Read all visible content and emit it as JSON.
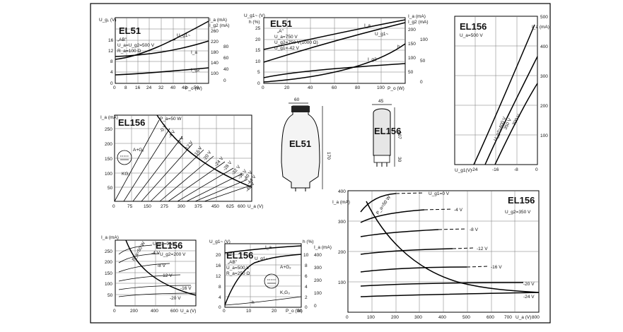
{
  "border_color": "#000000",
  "panel_a": {
    "title": "EL51",
    "y_label": "U_g₁ (V)",
    "ia_label": "I_a (mA)",
    "ig2_label": "I_g2 (mA)",
    "conditions": [
      "„AB\"",
      "U_a=U_g2=500 V",
      "R_a=100 Ω"
    ],
    "x_label": "P_o (W)",
    "x_ticks": [
      "0",
      "8",
      "16",
      "24",
      "32",
      "40",
      "48",
      "56"
    ],
    "y_ticks": [
      "0",
      "4",
      "8",
      "12",
      "16"
    ],
    "ia_ticks": [
      "260",
      "220",
      "180",
      "140",
      "100",
      "60",
      "40"
    ],
    "ig2_ticks": [
      "80",
      "60",
      "40",
      "20",
      "0"
    ],
    "curve_labels": [
      "U_g1~",
      "I_a",
      "I_g2"
    ]
  },
  "panel_b": {
    "title": "EL51",
    "y_label": "U_g1~ (V)",
    "y_label2": "h (%)",
    "ia_label": "I_a (mA)",
    "ig2_label": "I_g2 (mA)",
    "conditions": [
      "„A\"",
      "U_a=750 V",
      "U_g2=750 V(1000 Ω)",
      "U_g1=-42 V"
    ],
    "x_label": "P_o (W)",
    "x_ticks": [
      "0",
      "20",
      "40",
      "60",
      "80",
      "100",
      "120"
    ],
    "y_ticks": [
      "0",
      "5",
      "10",
      "15",
      "20",
      "25",
      "30"
    ],
    "ia_ticks": [
      "200",
      "150",
      "100",
      "50",
      "0"
    ],
    "ig2_ticks": [
      "100",
      "50",
      "0"
    ],
    "curve_labels": [
      "I_a",
      "U_g1~",
      "I_g2",
      "h"
    ]
  },
  "panel_c": {
    "title": "EL156",
    "condition": "U_a=500 V",
    "y_label": "I_a (mA)",
    "x_label": "U_g1(V)",
    "x_ticks": [
      "-24",
      "-16",
      "-8",
      "0"
    ],
    "y_ticks": [
      "500",
      "400",
      "300",
      "200",
      "100"
    ],
    "curve_labels": [
      "U_g2=400 V",
      "350 V",
      "300 V"
    ]
  },
  "panel_d": {
    "title": "EL156",
    "y_label": "I_a (mA)",
    "x_label": "U_a (V)",
    "pmax": "P_a=50 W",
    "x_ticks": [
      "0",
      "75",
      "150",
      "275",
      "300",
      "375",
      "450",
      "625",
      "600"
    ],
    "y_ticks": [
      "250",
      "200",
      "150",
      "100",
      "50"
    ],
    "curve_labels": [
      "-0 V",
      "-4 V",
      "-8 V",
      "-12 V",
      "-16 V",
      "-20 V",
      "-24 V",
      "-28 V",
      "-32 V",
      "-36 V",
      "-40 V",
      "-44 V",
      "-48 V"
    ],
    "socket_labels": [
      "A+G₂",
      "KG₃"
    ]
  },
  "panel_e": {
    "title": "EL51",
    "dim_top": "60",
    "dim_side": "170"
  },
  "panel_f": {
    "title": "EL156",
    "dim_top": "45",
    "dim_side": "107",
    "dim_base": "30"
  },
  "panel_g": {
    "title": "EL156",
    "condition": "U_g2=350 V",
    "y_label": "I_a (mA)",
    "x_label": "U_a (V)",
    "pmax": "P_a=50 W",
    "x_ticks": [
      "0",
      "100",
      "200",
      "300",
      "400",
      "500",
      "600",
      "700",
      "800"
    ],
    "y_ticks": [
      "400",
      "300",
      "200",
      "100"
    ],
    "curve_labels": [
      "U_g1=0 V",
      "-4 V",
      "-8 V",
      "-12 V",
      "-16 V",
      "-20 V",
      "-24 V"
    ]
  },
  "panel_h": {
    "title": "EL156",
    "condition": "U_g2=200 V",
    "y_label": "I_a (mA)",
    "x_label": "U_a (V)",
    "x_ticks": [
      "0",
      "200",
      "400",
      "600"
    ],
    "y_ticks": [
      "250",
      "200",
      "150",
      "100",
      "50"
    ],
    "curve_labels": [
      "U_g1=0 V",
      "-4 V",
      "-8 V",
      "-12 V",
      "-16 V",
      "-20 V",
      "P_a=50 W"
    ]
  },
  "panel_i": {
    "title": "EL156",
    "y_label": "U_g1~ (V)",
    "h_label": "h (%)",
    "ia_label": "I_a (mA)",
    "conditions": [
      "„AB\"",
      "U_a=500 V",
      "R_a=250 Ω"
    ],
    "x_label": "P_o (W)",
    "x_ticks": [
      "0",
      "10",
      "20",
      "30"
    ],
    "y_ticks": [
      "20",
      "16",
      "12",
      "8",
      "4",
      "0"
    ],
    "h_ticks": [
      "10",
      "8",
      "6",
      "4",
      "2",
      "0"
    ],
    "ia_ticks": [
      "400",
      "300",
      "200",
      "100",
      "0"
    ],
    "curve_labels": [
      "I_a",
      "U_g1~",
      "h"
    ],
    "socket_labels": [
      "A+G₂",
      "K,G₃"
    ]
  }
}
